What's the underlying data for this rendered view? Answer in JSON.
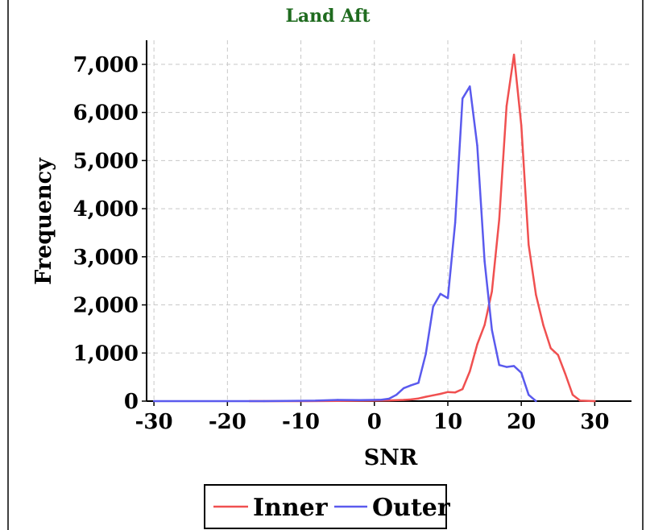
{
  "chart_data": {
    "type": "line",
    "title": "Land Aft",
    "xlabel": "SNR",
    "ylabel": "Frequency",
    "xlim": [
      -31,
      35
    ],
    "ylim": [
      0,
      7500
    ],
    "x_ticks": [
      -30,
      -20,
      -10,
      0,
      10,
      20,
      30
    ],
    "x_tick_labels": [
      "-30",
      "-20",
      "-10",
      "0",
      "10",
      "20",
      "30"
    ],
    "y_ticks": [
      0,
      1000,
      2000,
      3000,
      4000,
      5000,
      6000,
      7000
    ],
    "y_tick_labels": [
      "0",
      "1,000",
      "2,000",
      "3,000",
      "4,000",
      "5,000",
      "6,000",
      "7,000"
    ],
    "grid": true,
    "legend_position": "bottom-center",
    "series": [
      {
        "name": "Inner",
        "color": "#f05050",
        "x": [
          -17,
          -10,
          -5,
          0,
          2,
          4,
          5,
          6,
          7,
          8,
          9,
          10,
          11,
          12,
          13,
          14,
          15,
          16,
          17,
          18,
          19,
          20,
          21,
          22,
          23,
          24,
          25,
          26,
          27,
          28,
          30
        ],
        "y": [
          0,
          0,
          5,
          10,
          15,
          25,
          35,
          55,
          90,
          120,
          150,
          190,
          180,
          250,
          620,
          1180,
          1580,
          2280,
          3780,
          6130,
          7200,
          5730,
          3250,
          2210,
          1580,
          1100,
          960,
          560,
          130,
          10,
          0
        ]
      },
      {
        "name": "Outer",
        "color": "#5a5aee",
        "x": [
          -30,
          -15,
          -8,
          -5,
          -2,
          0,
          1,
          2,
          3,
          4,
          5,
          6,
          7,
          8,
          9,
          10,
          11,
          12,
          13,
          14,
          15,
          16,
          17,
          18,
          19,
          20,
          21,
          22
        ],
        "y": [
          0,
          0,
          10,
          25,
          20,
          25,
          30,
          50,
          130,
          270,
          330,
          380,
          980,
          1960,
          2230,
          2140,
          3710,
          6290,
          6540,
          5310,
          2910,
          1480,
          750,
          710,
          730,
          590,
          130,
          0
        ]
      }
    ]
  }
}
